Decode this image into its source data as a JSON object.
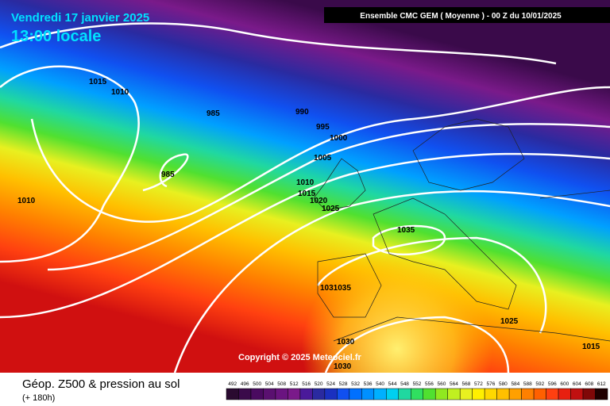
{
  "header": {
    "date": "Vendredi 17 janvier 2025",
    "time": "13:00 locale",
    "model": "Ensemble CMC GEM  ( Moyenne )  -  00 Z du 10/01/2025"
  },
  "isobar_labels": [
    "1015",
    "1010",
    "985",
    "990",
    "995",
    "1000",
    "1005",
    "985",
    "1010",
    "1010",
    "1015",
    "1020",
    "1025",
    "1035",
    "1031035",
    "1030",
    "1030",
    "1025",
    "1015"
  ],
  "copyright": "Copyright © 2025 Meteociel.fr",
  "footer": {
    "title": "Géop. Z500 & pression au sol",
    "lead": "(+ 180h)"
  },
  "scale": [
    "492",
    "496",
    "500",
    "504",
    "508",
    "512",
    "516",
    "520",
    "524",
    "528",
    "532",
    "536",
    "540",
    "544",
    "548",
    "552",
    "556",
    "560",
    "564",
    "568",
    "572",
    "576",
    "580",
    "584",
    "588",
    "592",
    "596",
    "600",
    "604",
    "608",
    "612"
  ]
}
